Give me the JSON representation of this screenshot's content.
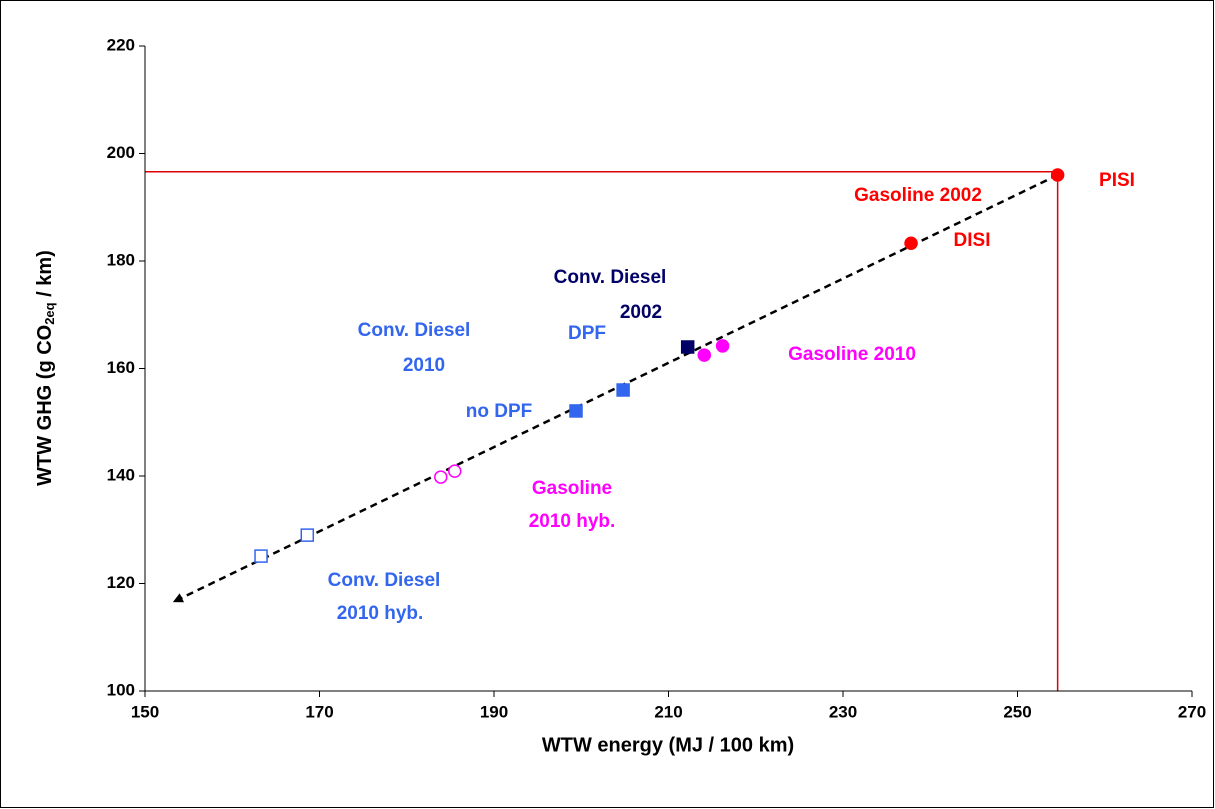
{
  "chart_data": {
    "type": "scatter",
    "xlabel": "WTW energy (MJ / 100 km)",
    "ylabel": [
      "WTW GHG (g CO",
      "2eq",
      " / km)"
    ],
    "xlim": [
      150,
      270
    ],
    "xticks": [
      150,
      170,
      190,
      210,
      230,
      250,
      270
    ],
    "ylim": [
      100,
      220
    ],
    "yticks": [
      100,
      120,
      140,
      160,
      180,
      200,
      220
    ],
    "grid": false,
    "series": [
      {
        "color": "#ff0000",
        "marker": "circle",
        "filled": true,
        "x": [
          254.6,
          237.8
        ],
        "values": [
          196.0,
          183.3
        ]
      },
      {
        "color": "#000066",
        "marker": "square",
        "filled": true,
        "x": [
          212.2
        ],
        "values": [
          164.0
        ]
      },
      {
        "color": "#ff00ff",
        "marker": "circle",
        "filled": true,
        "x": [
          214.1,
          216.2
        ],
        "values": [
          162.5,
          164.2
        ]
      },
      {
        "color": "#3366ee",
        "marker": "square",
        "filled": true,
        "x": [
          199.4,
          204.8
        ],
        "values": [
          152.1,
          156.0
        ]
      },
      {
        "color": "#ff00ff",
        "marker": "circle",
        "filled": false,
        "x": [
          183.9,
          185.5
        ],
        "values": [
          139.8,
          140.9
        ]
      },
      {
        "color": "#3366ee",
        "marker": "square",
        "filled": false,
        "x": [
          163.3,
          168.6
        ],
        "values": [
          125.1,
          129.0
        ]
      }
    ],
    "trend_line": {
      "x": [
        254.6,
        153.4
      ],
      "values": [
        196.0,
        116.7
      ],
      "color": "#000000"
    },
    "reference": {
      "x": 254.6,
      "y": 196.6,
      "color": "#e00000"
    },
    "annotations": [
      {
        "text": [
          "PISI"
        ],
        "color": "#ff0000"
      },
      {
        "text": [
          "Gasoline 2002"
        ],
        "color": "#ff0000"
      },
      {
        "text": [
          "DISI"
        ],
        "color": "#ff0000"
      },
      {
        "text": [
          "Conv. Diesel",
          "2002"
        ],
        "color": "#000066"
      },
      {
        "text": [
          "Conv. Diesel",
          "2010"
        ],
        "color": "#3366ee"
      },
      {
        "text": [
          "DPF"
        ],
        "color": "#3366ee"
      },
      {
        "text": [
          "no DPF"
        ],
        "color": "#3366ee"
      },
      {
        "text": [
          "Gasoline 2010"
        ],
        "color": "#ff00ff"
      },
      {
        "text": [
          "Gasoline",
          "2010 hyb."
        ],
        "color": "#ff00ff"
      },
      {
        "text": [
          "Conv. Diesel",
          "2010 hyb."
        ],
        "color": "#3366ee"
      }
    ]
  }
}
